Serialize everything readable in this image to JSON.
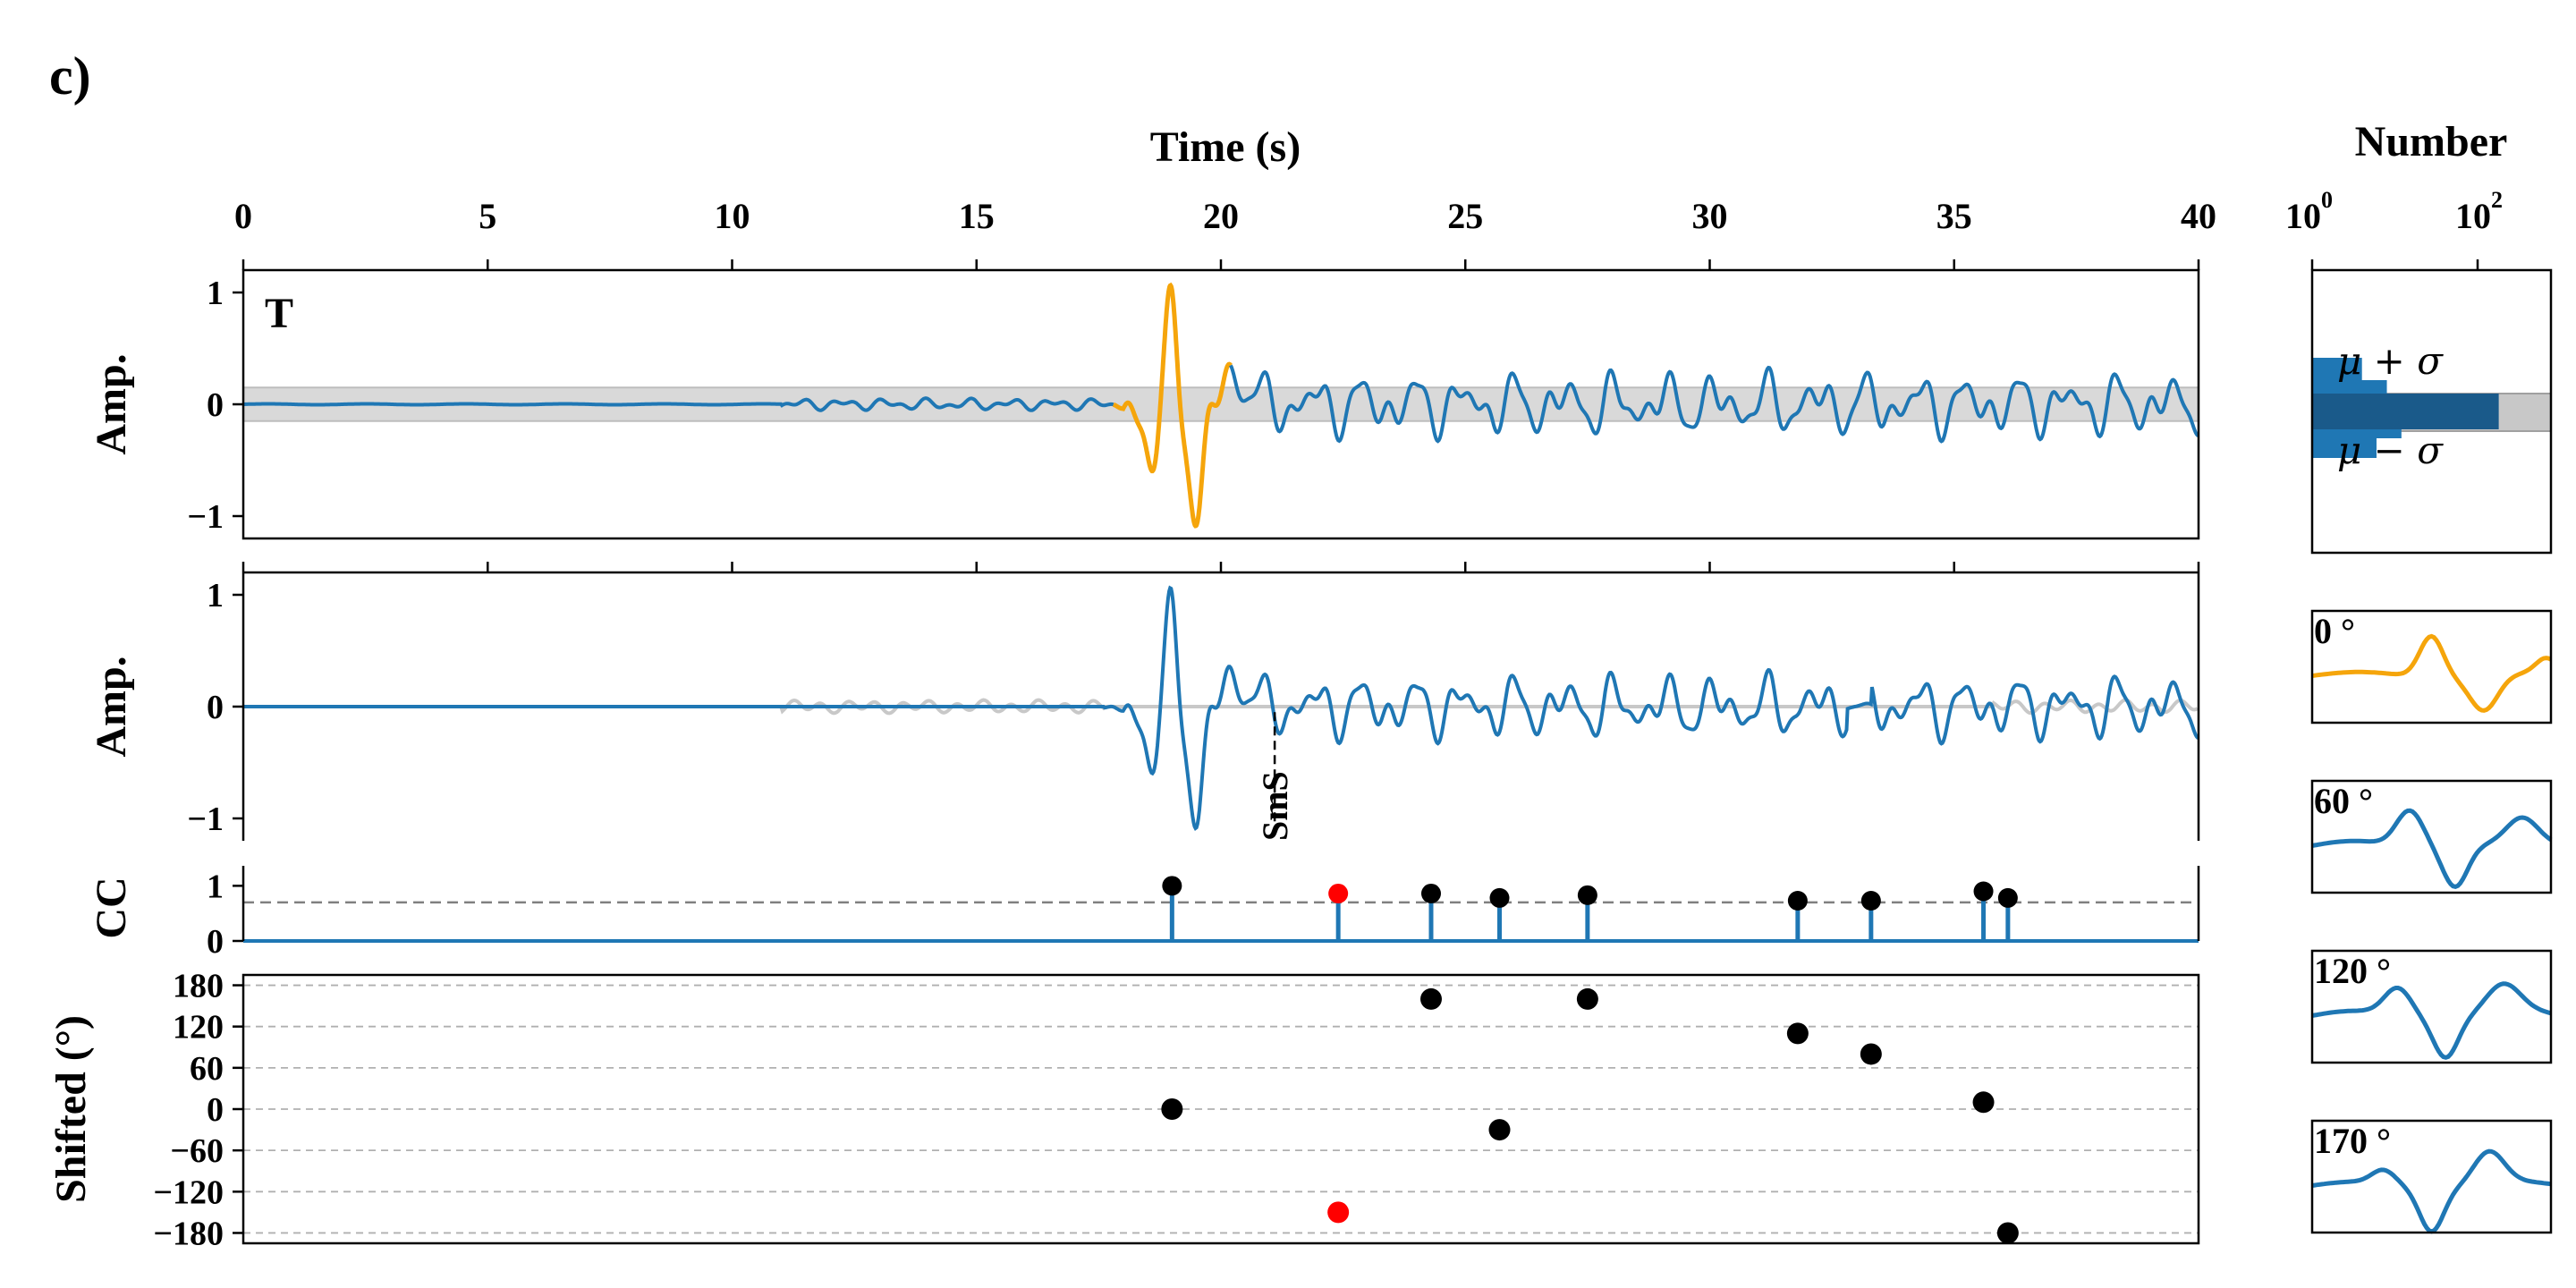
{
  "panel_label": "c)",
  "chart_data": {
    "type": "line",
    "x_axis": {
      "label": "Time (s)",
      "range": [
        0,
        40
      ],
      "ticks": [
        "0",
        "5",
        "10",
        "15",
        "20",
        "25",
        "30",
        "35",
        "40"
      ]
    },
    "number_axis": {
      "label": "Number",
      "scale": "log",
      "ticks": [
        "10^0",
        "10^2"
      ]
    },
    "trace_panel": {
      "component_label": "T",
      "ylabel": "Amp.",
      "ylim": [
        -1.2,
        1.2
      ],
      "yticks": [
        "1",
        "0",
        "−1"
      ],
      "noise_band": [
        -0.15,
        0.15
      ],
      "highlight_window_s": [
        17.8,
        20.2
      ],
      "colors": {
        "trace": "#1f77b4",
        "highlight": "#f5a50b",
        "band": "#d9d9d9"
      }
    },
    "reconstructed_panel": {
      "ylabel": "Amp.",
      "ylim": [
        -1.2,
        1.2
      ],
      "yticks": [
        "1",
        "0",
        "−1"
      ],
      "phase_marker": {
        "label": "SmS",
        "time_s": 21.1
      }
    },
    "cc_panel": {
      "ylabel": "CC",
      "ylim": [
        0,
        1.2
      ],
      "yticks": [
        "1",
        "0"
      ],
      "threshold": 0.7,
      "points": [
        {
          "time_s": 19.0,
          "cc": 1.0,
          "highlight": false
        },
        {
          "time_s": 22.4,
          "cc": 0.86,
          "highlight": true
        },
        {
          "time_s": 24.3,
          "cc": 0.86,
          "highlight": false
        },
        {
          "time_s": 25.7,
          "cc": 0.78,
          "highlight": false
        },
        {
          "time_s": 27.5,
          "cc": 0.83,
          "highlight": false
        },
        {
          "time_s": 31.8,
          "cc": 0.73,
          "highlight": false
        },
        {
          "time_s": 33.3,
          "cc": 0.73,
          "highlight": false
        },
        {
          "time_s": 35.6,
          "cc": 0.9,
          "highlight": false
        },
        {
          "time_s": 36.1,
          "cc": 0.78,
          "highlight": false
        }
      ],
      "colors": {
        "stem": "#1f77b4",
        "marker": "#000000",
        "highlight": "#ff0000"
      }
    },
    "shift_panel": {
      "ylabel": "Shifted (°)",
      "ylim": [
        -195,
        195
      ],
      "yticks": [
        "180",
        "120",
        "60",
        "0",
        "−60",
        "−120",
        "−180"
      ],
      "points": [
        {
          "time_s": 19.0,
          "shift_deg": 0,
          "highlight": false
        },
        {
          "time_s": 22.4,
          "shift_deg": -150,
          "highlight": true
        },
        {
          "time_s": 24.3,
          "shift_deg": 160,
          "highlight": false
        },
        {
          "time_s": 25.7,
          "shift_deg": -30,
          "highlight": false
        },
        {
          "time_s": 27.5,
          "shift_deg": 160,
          "highlight": false
        },
        {
          "time_s": 31.8,
          "shift_deg": 110,
          "highlight": false
        },
        {
          "time_s": 33.3,
          "shift_deg": 80,
          "highlight": false
        },
        {
          "time_s": 35.6,
          "shift_deg": 10,
          "highlight": false
        },
        {
          "time_s": 36.1,
          "shift_deg": -180,
          "highlight": false
        }
      ]
    },
    "histogram": {
      "labels": {
        "upper": "μ + σ",
        "lower": "μ − σ"
      },
      "colors": {
        "light": "#1f77b4",
        "dark": "#1a5a8a",
        "band": "#c8c8c8"
      }
    },
    "rotated_wavelets": [
      {
        "label": "0 °",
        "color": "#f5a50b"
      },
      {
        "label": "60 °",
        "color": "#1f77b4"
      },
      {
        "label": "120 °",
        "color": "#1f77b4"
      },
      {
        "label": "170 °",
        "color": "#1f77b4"
      }
    ]
  }
}
